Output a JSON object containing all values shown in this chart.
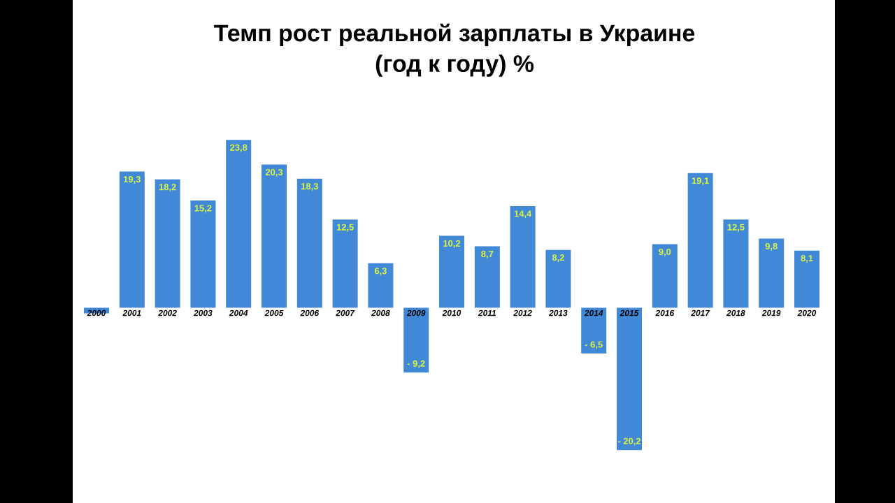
{
  "chart_data": {
    "type": "bar",
    "title": "Темп рост реальной зарплаты в Украине",
    "subtitle": "(год к году) %",
    "categories": [
      "2000",
      "2001",
      "2002",
      "2003",
      "2004",
      "2005",
      "2006",
      "2007",
      "2008",
      "2009",
      "2010",
      "2011",
      "2012",
      "2013",
      "2014",
      "2015",
      "2016",
      "2017",
      "2018",
      "2019",
      "2020"
    ],
    "values": [
      -0.8,
      19.3,
      18.2,
      15.2,
      23.8,
      20.3,
      18.3,
      12.5,
      6.3,
      -9.2,
      10.2,
      8.7,
      14.4,
      8.2,
      -6.5,
      -20.2,
      9.0,
      19.1,
      12.5,
      9.8,
      8.1
    ],
    "value_labels": [
      null,
      "19,3",
      "18,2",
      "15,2",
      "23,8",
      "20,3",
      "18,3",
      "12,5",
      "6,3",
      "- 9,2",
      "10,2",
      "8,7",
      "14,4",
      "8,2",
      "- 6,5",
      "- 20,2",
      "9,0",
      "19,1",
      "12,5",
      "9,8",
      "8,1"
    ],
    "color": "#4188d6"
  }
}
